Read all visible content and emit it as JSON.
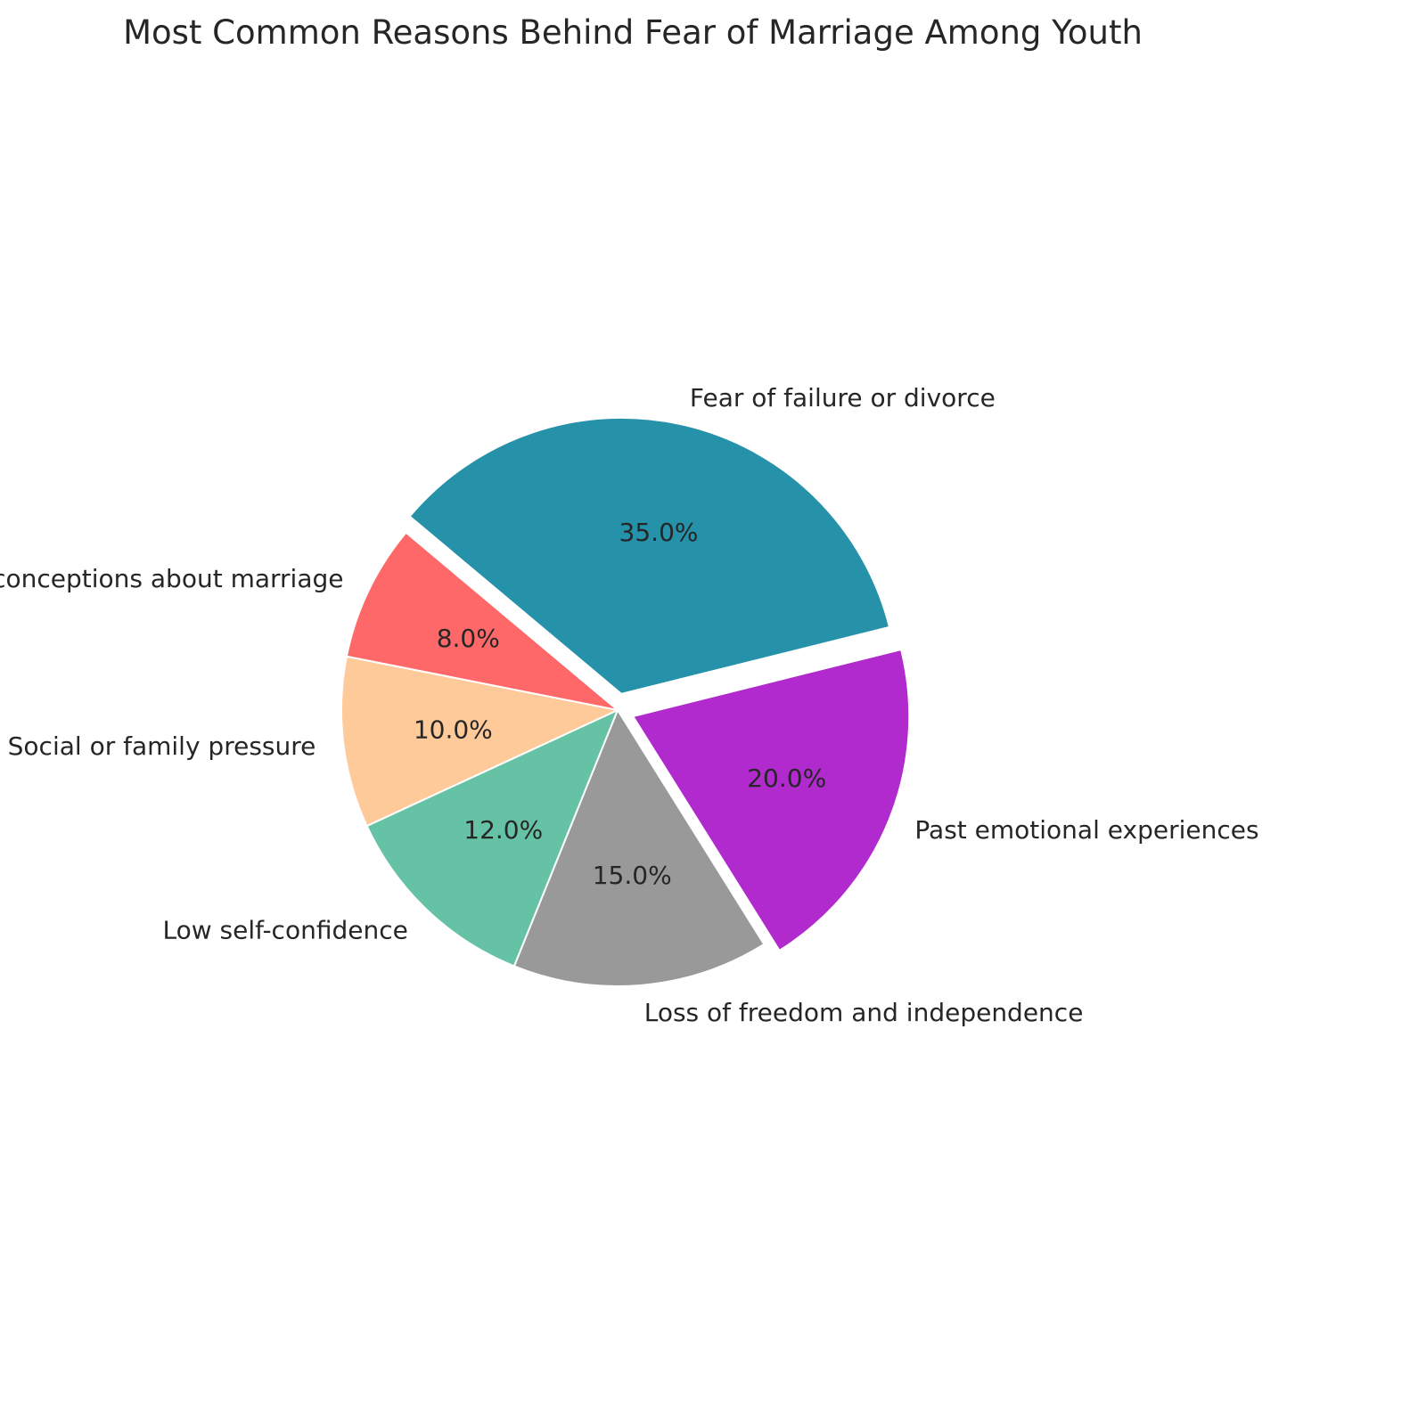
{
  "chart_data": {
    "type": "pie",
    "title": "Most Common Reasons Behind Fear of Marriage Among Youth",
    "start_angle_deg": 140,
    "direction": "clockwise",
    "slices": [
      {
        "label": "Fear of failure or divorce",
        "value": 35.0,
        "pct_label": "35.0%",
        "color": "#2592AA",
        "exploded": true
      },
      {
        "label": "Past emotional experiences",
        "value": 20.0,
        "pct_label": "20.0%",
        "color": "#B02ACD",
        "exploded": true
      },
      {
        "label": "Loss of freedom and independence",
        "value": 15.0,
        "pct_label": "15.0%",
        "color": "#999999",
        "exploded": false
      },
      {
        "label": "Low self-confidence",
        "value": 12.0,
        "pct_label": "12.0%",
        "color": "#66C2A5",
        "exploded": false
      },
      {
        "label": "Social or family pressure",
        "value": 10.0,
        "pct_label": "10.0%",
        "color": "#FFCA99",
        "exploded": false
      },
      {
        "label": "Misconceptions about marriage",
        "value": 8.0,
        "pct_label": "8.0%",
        "color": "#FF6868",
        "exploded": false
      }
    ]
  }
}
